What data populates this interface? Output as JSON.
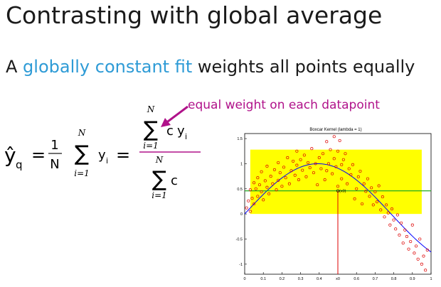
{
  "slide": {
    "title": "Contrasting with global average",
    "subtitle_prefix": "A ",
    "subtitle_highlight": "globally constant fit",
    "subtitle_suffix": " weights all points equally",
    "annotation": "equal weight on each datapoint",
    "highlight_color": "#2e9bd6",
    "annotation_color": "#b0128a"
  },
  "formula": {
    "lhs": "ŷ",
    "lhs_sub": "q",
    "eq": "=",
    "frac_num": "1",
    "frac_den": "N",
    "sum_upper": "N",
    "sum_lower": "i=1",
    "sum_symbol": "∑",
    "y": "y",
    "y_sub": "i",
    "weight": "c",
    "num_upper": "N",
    "num_lower": "i=1",
    "den_upper": "N",
    "den_lower": "i=1"
  },
  "chart_data": {
    "type": "scatter",
    "title": "Boxcar Kernel (lambda = 1)",
    "xlim": [
      0,
      1
    ],
    "ylim": [
      -1.2,
      1.6
    ],
    "x_ticks": [
      "0",
      "0.1",
      "0.2",
      "0.3",
      "0.4",
      "x0",
      "0.6",
      "0.7",
      "0.8",
      "0.9",
      "1"
    ],
    "y_ticks": [
      "-1",
      "-0.5",
      "0",
      "0.5",
      "1",
      "1.5"
    ],
    "marker_label": "(x0)",
    "x0": 0.5,
    "fit_value": 0.46,
    "band": [
      0,
      1.28
    ],
    "band_x": [
      0.03,
      0.95
    ],
    "colors": {
      "band": "#ffff00",
      "points": "#dd0000",
      "curve": "#0000ff",
      "fit": "#22aa22",
      "x0_line": "#dd0000"
    },
    "points": [
      [
        0.01,
        0.12
      ],
      [
        0.02,
        0.26
      ],
      [
        0.03,
        0.05
      ],
      [
        0.03,
        0.48
      ],
      [
        0.04,
        0.31
      ],
      [
        0.05,
        0.2
      ],
      [
        0.05,
        0.62
      ],
      [
        0.06,
        0.5
      ],
      [
        0.07,
        0.35
      ],
      [
        0.07,
        0.72
      ],
      [
        0.08,
        0.58
      ],
      [
        0.09,
        0.44
      ],
      [
        0.09,
        0.84
      ],
      [
        0.1,
        0.28
      ],
      [
        0.11,
        0.66
      ],
      [
        0.12,
        0.53
      ],
      [
        0.12,
        0.95
      ],
      [
        0.13,
        0.4
      ],
      [
        0.14,
        0.75
      ],
      [
        0.15,
        0.6
      ],
      [
        0.16,
        0.88
      ],
      [
        0.17,
        0.48
      ],
      [
        0.18,
        0.67
      ],
      [
        0.18,
        1.02
      ],
      [
        0.19,
        0.82
      ],
      [
        0.2,
        0.55
      ],
      [
        0.21,
        0.93
      ],
      [
        0.22,
        0.72
      ],
      [
        0.23,
        1.12
      ],
      [
        0.24,
        0.6
      ],
      [
        0.25,
        0.86
      ],
      [
        0.26,
        1.05
      ],
      [
        0.27,
        0.77
      ],
      [
        0.28,
        0.97
      ],
      [
        0.28,
        1.25
      ],
      [
        0.29,
        0.68
      ],
      [
        0.3,
        1.08
      ],
      [
        0.31,
        0.87
      ],
      [
        0.32,
        1.17
      ],
      [
        0.33,
        0.74
      ],
      [
        0.34,
        1.02
      ],
      [
        0.35,
        0.92
      ],
      [
        0.36,
        1.3
      ],
      [
        0.37,
        0.82
      ],
      [
        0.38,
        1.0
      ],
      [
        0.39,
        0.58
      ],
      [
        0.4,
        1.12
      ],
      [
        0.41,
        0.9
      ],
      [
        0.42,
        1.2
      ],
      [
        0.43,
        0.68
      ],
      [
        0.44,
        0.86
      ],
      [
        0.44,
        1.44
      ],
      [
        0.45,
        1.0
      ],
      [
        0.46,
        1.28
      ],
      [
        0.47,
        0.8
      ],
      [
        0.48,
        1.54
      ],
      [
        0.48,
        1.1
      ],
      [
        0.49,
        0.94
      ],
      [
        0.5,
        0.55
      ],
      [
        0.5,
        1.25
      ],
      [
        0.51,
        1.46
      ],
      [
        0.52,
        0.7
      ],
      [
        0.52,
        0.98
      ],
      [
        0.53,
        1.08
      ],
      [
        0.54,
        1.2
      ],
      [
        0.55,
        0.6
      ],
      [
        0.56,
        0.9
      ],
      [
        0.57,
        0.78
      ],
      [
        0.58,
        0.98
      ],
      [
        0.59,
        0.3
      ],
      [
        0.6,
        0.5
      ],
      [
        0.61,
        0.74
      ],
      [
        0.62,
        0.85
      ],
      [
        0.63,
        0.2
      ],
      [
        0.64,
        0.6
      ],
      [
        0.65,
        0.45
      ],
      [
        0.66,
        0.7
      ],
      [
        0.67,
        0.35
      ],
      [
        0.68,
        0.52
      ],
      [
        0.69,
        0.18
      ],
      [
        0.7,
        0.44
      ],
      [
        0.71,
        0.24
      ],
      [
        0.72,
        0.56
      ],
      [
        0.73,
        0.08
      ],
      [
        0.74,
        0.34
      ],
      [
        0.75,
        -0.06
      ],
      [
        0.76,
        0.18
      ],
      [
        0.77,
        0.02
      ],
      [
        0.78,
        -0.22
      ],
      [
        0.79,
        0.1
      ],
      [
        0.8,
        -0.12
      ],
      [
        0.81,
        -0.3
      ],
      [
        0.82,
        -0.02
      ],
      [
        0.83,
        -0.42
      ],
      [
        0.84,
        -0.18
      ],
      [
        0.85,
        -0.58
      ],
      [
        0.86,
        -0.32
      ],
      [
        0.87,
        -0.45
      ],
      [
        0.88,
        -0.7
      ],
      [
        0.89,
        -0.55
      ],
      [
        0.9,
        -0.22
      ],
      [
        0.91,
        -0.78
      ],
      [
        0.92,
        -0.64
      ],
      [
        0.93,
        -0.9
      ],
      [
        0.94,
        -0.5
      ],
      [
        0.95,
        -1.0
      ],
      [
        0.96,
        -0.84
      ],
      [
        0.97,
        -1.12
      ],
      [
        0.98,
        -0.72
      ]
    ]
  }
}
